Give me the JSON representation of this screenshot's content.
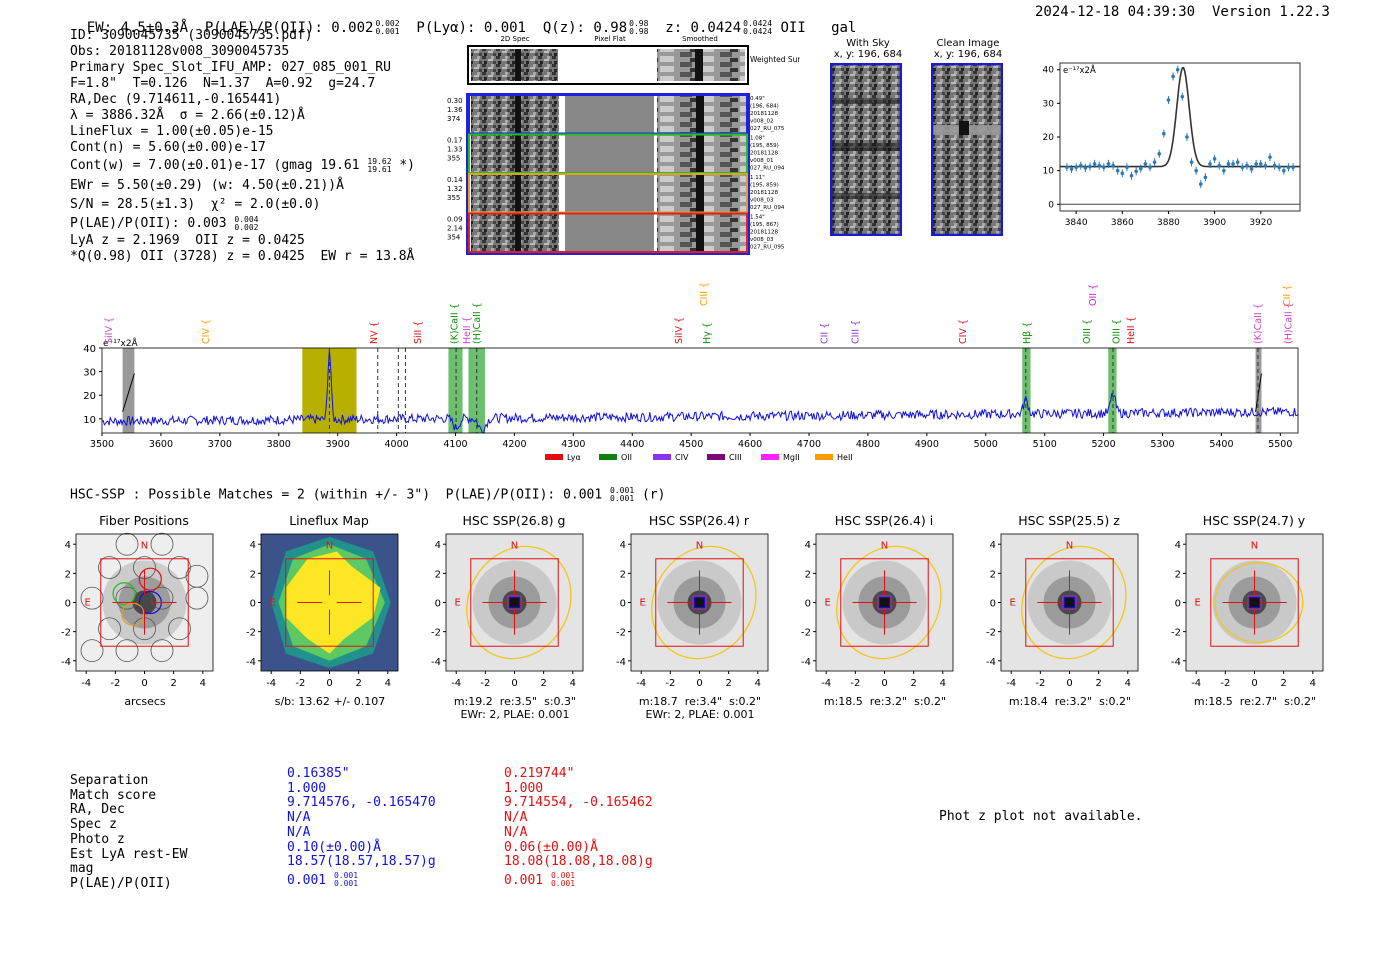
{
  "header": {
    "ew": "EW: 4.5±0.3Å",
    "plae": "P(LAE)/P(OII): 0.002",
    "plae_hi": "0.002",
    "plae_lo": "0.001",
    "plya": "P(Lyα): 0.001",
    "qz": "Q(z): 0.98",
    "qz_hi": "0.98",
    "qz_lo": "0.98",
    "z": "z: 0.0424",
    "z_hi": "0.0424",
    "z_lo": "0.0424",
    "line": "OII",
    "type": "gal",
    "datetime": "2024-12-18 04:39:30",
    "version": "Version 1.22.3"
  },
  "info": {
    "lines": [
      "ID: 3090045735 (3090045735.pdf)",
      "Obs: 20181128v008_3090045735",
      "Primary Spec_Slot_IFU_AMP: 027_085_001_RU",
      "F=1.8\"  T=0.126  N=1.37  A=0.92  g=24.7",
      "RA,Dec (9.714611,-0.165441)",
      "λ = 3886.32Å  σ = 2.66(±0.12)Å",
      "LineFlux = 1.00(±0.05)e-15",
      "Cont(n) = 5.60(±0.00)e-17"
    ],
    "cont_w": "Cont(w) = 7.00(±0.01)e-17 (gmag 19.61",
    "cont_w_hi": "19.62",
    "cont_w_lo": "19.61",
    "cont_w_end": " *)",
    "ewr": "EWr = 5.50(±0.29) (w: 4.50(±0.21))Å",
    "sn": "S/N = 28.5(±1.3)  χ² = 2.0(±0.0)",
    "plae2": "P(LAE)/P(OII): 0.003",
    "plae2_hi": "0.004",
    "plae2_lo": "0.002",
    "lya": "LyA z = 2.1969  OII z = 0.0425",
    "q": "*Q(0.98) OII (3728) z = 0.0425  EW r = 13.8Å"
  },
  "spec2d": {
    "col_titles": [
      "2D Spec",
      "Pixel Flat",
      "Smoothed"
    ],
    "weighted_sum": "Weighted Sum",
    "rows": [
      {
        "left": [
          "0.30",
          "1.36",
          "374"
        ],
        "right": [
          "0.49\"",
          "(196, 684)",
          "20181128",
          "v008_02",
          "027_RU_075"
        ],
        "color": "#2020e0"
      },
      {
        "left": [
          "0.17",
          "1.33",
          "355"
        ],
        "right": [
          "1.08\"",
          "(195, 859)",
          "20181128",
          "v008_01",
          "027_RU_094"
        ],
        "color": "#20c020"
      },
      {
        "left": [
          "0.14",
          "1.32",
          "355"
        ],
        "right": [
          "1.11\"",
          "(195, 859)",
          "20181128",
          "v008_03",
          "027_RU_094"
        ],
        "color": "#e0a020"
      },
      {
        "left": [
          "0.09",
          "2.14",
          "354"
        ],
        "right": [
          "1.54\"",
          "(195, 867)",
          "20181128",
          "v008_03",
          "027_RU_095"
        ],
        "color": "#e02020"
      }
    ]
  },
  "sky": {
    "with_sky": "With Sky",
    "with_sky_xy": "x, y: 196, 684",
    "clean": "Clean Image",
    "clean_xy": "x, y: 196, 684"
  },
  "zoom_chart": {
    "type": "scatter",
    "title": "e⁻¹⁷x2Å",
    "x_ticks": [
      3840,
      3860,
      3880,
      3900,
      3920
    ],
    "y_ticks": [
      0,
      10,
      20,
      30,
      40
    ],
    "xlim": [
      3833,
      3937
    ],
    "ylim": [
      -2,
      42
    ],
    "points_x": [
      3836,
      3838,
      3840,
      3842,
      3844,
      3846,
      3848,
      3850,
      3852,
      3854,
      3856,
      3858,
      3860,
      3862,
      3864,
      3866,
      3868,
      3870,
      3872,
      3874,
      3876,
      3878,
      3880,
      3882,
      3884,
      3886,
      3888,
      3890,
      3892,
      3894,
      3896,
      3898,
      3900,
      3902,
      3904,
      3906,
      3908,
      3910,
      3912,
      3914,
      3916,
      3918,
      3920,
      3922,
      3924,
      3926,
      3928,
      3930,
      3932,
      3934
    ],
    "points_y": [
      11,
      10.5,
      11,
      11.5,
      10.8,
      11.2,
      12,
      11.5,
      11,
      12,
      11.5,
      10,
      9.2,
      11,
      8.5,
      9.8,
      10.6,
      12,
      11,
      12.5,
      15,
      21,
      31,
      38,
      40,
      32,
      20,
      12.5,
      10,
      6,
      8,
      12,
      13.5,
      11.5,
      10,
      12,
      12,
      12.5,
      11,
      11.5,
      10.5,
      12,
      12,
      11.5,
      14,
      11.5,
      11,
      10,
      11,
      11
    ],
    "fit_center": 3886.3,
    "fit_sigma": 2.66,
    "fit_amp": 29.5,
    "fit_base": 11.2
  },
  "full_spec": {
    "type": "line",
    "ylabel": "e⁻¹⁷x2Å",
    "x_ticks": [
      3500,
      3600,
      3700,
      3800,
      3900,
      4000,
      4100,
      4200,
      4300,
      4400,
      4500,
      4600,
      4700,
      4800,
      4900,
      5000,
      5100,
      5200,
      5300,
      5400,
      5500
    ],
    "y_ticks": [
      10,
      20,
      30,
      40
    ],
    "xlim": [
      3500,
      5530
    ],
    "ylim": [
      4,
      40
    ],
    "line_labels": [
      {
        "text": "SiIV",
        "x": 3510,
        "color": "#cc44cc",
        "tier": 0
      },
      {
        "text": "CIV",
        "x": 3675,
        "color": "#ff9900",
        "tier": 0
      },
      {
        "text": "NV",
        "x": 3960,
        "color": "#e01010",
        "tier": 0
      },
      {
        "text": "SiII",
        "x": 4035,
        "color": "#e01010",
        "tier": 0
      },
      {
        "text": "(K)CaII",
        "x": 4097,
        "color": "#109010",
        "tier": 0
      },
      {
        "text": "HeII",
        "x": 4118,
        "color": "#cc44cc",
        "tier": 0
      },
      {
        "text": "(H)CaII",
        "x": 4135,
        "color": "#109010",
        "tier": 0
      },
      {
        "text": "SiIV",
        "x": 4478,
        "color": "#e01010",
        "tier": 0
      },
      {
        "text": "Hγ",
        "x": 4525,
        "color": "#109010",
        "tier": 0
      },
      {
        "text": "CIII",
        "x": 4520,
        "color": "#ff9900",
        "tier": 1
      },
      {
        "text": "CII",
        "x": 4725,
        "color": "#9933cc",
        "tier": 0
      },
      {
        "text": "CIII",
        "x": 4777,
        "color": "#9933cc",
        "tier": 0
      },
      {
        "text": "CIV",
        "x": 4960,
        "color": "#e01010",
        "tier": 0
      },
      {
        "text": "Hβ",
        "x": 5068,
        "color": "#109010",
        "tier": 0
      },
      {
        "text": "OIII",
        "x": 5170,
        "color": "#109010",
        "tier": 0
      },
      {
        "text": "OII",
        "x": 5180,
        "color": "#cc22cc",
        "tier": 1
      },
      {
        "text": "OIII",
        "x": 5220,
        "color": "#109010",
        "tier": 0
      },
      {
        "text": "HeII",
        "x": 5245,
        "color": "#e01010",
        "tier": 0
      },
      {
        "text": "(K)CaII",
        "x": 5460,
        "color": "#cc44cc",
        "tier": 0
      },
      {
        "text": "CII",
        "x": 5510,
        "color": "#ff9900",
        "tier": 1
      },
      {
        "text": "(H)CaII",
        "x": 5512,
        "color": "#cc44cc",
        "tier": 0
      }
    ],
    "legend": [
      {
        "label": "Lyα",
        "color": "#e01010"
      },
      {
        "label": "OII",
        "color": "#108010"
      },
      {
        "label": "CIV",
        "color": "#8833ee"
      },
      {
        "label": "CIII",
        "color": "#7a0a7a"
      },
      {
        "label": "MgII",
        "color": "#ff22ff"
      },
      {
        "label": "HeII",
        "color": "#ff9900"
      }
    ]
  },
  "hsc": {
    "title": "HSC-SSP : Possible Matches = 2 (within +/- 3\")  P(LAE)/P(OII): 0.001",
    "plae_hi": "0.001",
    "plae_lo": "0.001",
    "band": "(r)"
  },
  "cutouts": [
    {
      "title": "Fiber Positions",
      "caption": "arcsecs",
      "kind": "fiber"
    },
    {
      "title": "Lineflux Map",
      "caption": "s/b: 13.62 +/- 0.107",
      "kind": "flux"
    },
    {
      "title": "HSC SSP(26.8) g",
      "caption": "m:19.2  re:3.5\"  s:0.3\"\nEWr: 2, PLAE: 0.001",
      "kind": "img"
    },
    {
      "title": "HSC SSP(26.4) r",
      "caption": "m:18.7  re:3.4\"  s:0.2\"\nEWr: 2, PLAE: 0.001",
      "kind": "img"
    },
    {
      "title": "HSC SSP(26.4) i",
      "caption": "m:18.5  re:3.2\"  s:0.2\"",
      "kind": "img"
    },
    {
      "title": "HSC SSP(25.5) z",
      "caption": "m:18.4  re:3.2\"  s:0.2\"",
      "kind": "img"
    },
    {
      "title": "HSC SSP(24.7) y",
      "caption": "m:18.5  re:2.7\"  s:0.2\"",
      "kind": "img"
    }
  ],
  "cutout_axis": {
    "ticks": [
      -4,
      -2,
      0,
      2,
      4
    ],
    "north": "N",
    "east": "E"
  },
  "matches": {
    "labels": [
      "Separation",
      "Match score",
      "RA, Dec",
      "Spec z",
      "Photo z",
      "Est LyA rest-EW",
      "mag",
      "P(LAE)/P(OII)"
    ],
    "blue": [
      "0.16385\"",
      "1.000",
      "9.714576, -0.165470",
      "N/A",
      "N/A",
      "0.10(±0.00)Å",
      "18.57(18.57,18.57)g",
      "0.001"
    ],
    "red": [
      "0.219744\"",
      "1.000",
      "9.714554, -0.165462",
      "N/A",
      "N/A",
      "0.06(±0.00)Å",
      "18.08(18.08,18.08)g",
      "0.001"
    ],
    "blue_plae_hi": "0.001",
    "blue_plae_lo": "0.001",
    "red_plae_hi": "0.001",
    "red_plae_lo": "0.001",
    "photz_msg": "Phot z plot not available."
  }
}
